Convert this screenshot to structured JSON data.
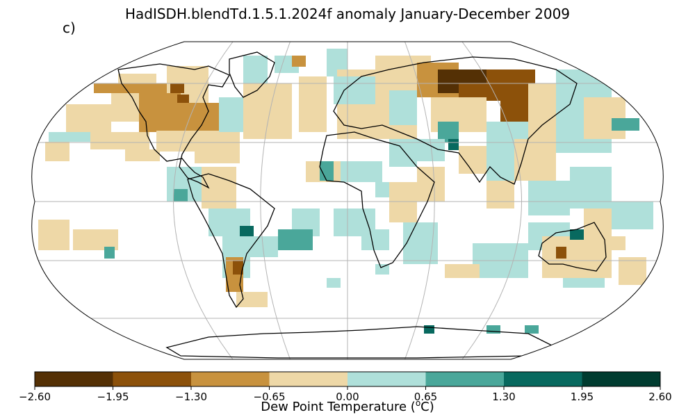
{
  "title": "HadISDH.blendTd.1.5.1.2024f anomaly January-December 2009",
  "panel_label": "c)",
  "colorbar": {
    "label_prefix": "Dew Point Temperature (",
    "label_unit_sup": "o",
    "label_suffix": "C)",
    "ticks": [
      "−2.60",
      "−1.95",
      "−1.30",
      "−0.65",
      "0.00",
      "0.65",
      "1.30",
      "1.95",
      "2.60"
    ],
    "tick_values": [
      -2.6,
      -1.95,
      -1.3,
      -0.65,
      0.0,
      0.65,
      1.3,
      1.95,
      2.6
    ],
    "colors": [
      "#543005",
      "#8c510a",
      "#c8923e",
      "#eed8a7",
      "#afe0da",
      "#4aa79a",
      "#08695f",
      "#003c30"
    ]
  },
  "map": {
    "projection": "Robinson",
    "gridlines": true,
    "land_color": "#ffffff",
    "missing_color": "#ffffff",
    "coastline_color": "#000000"
  },
  "colors": {
    "gridline": "#b3b3b3",
    "outline": "#000000"
  }
}
